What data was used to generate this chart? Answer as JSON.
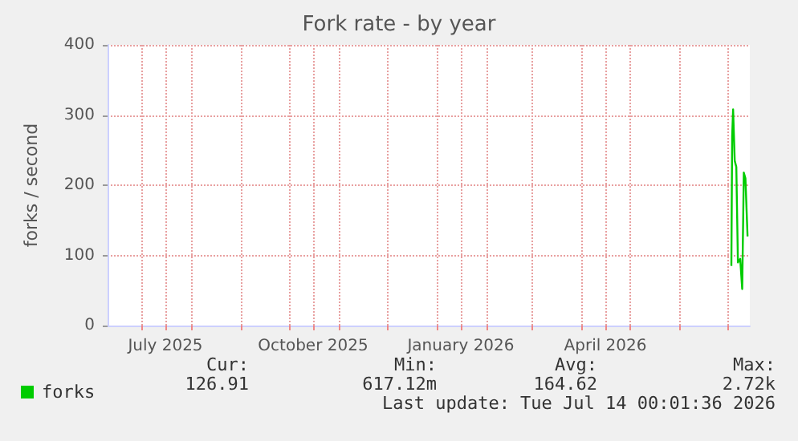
{
  "chart_data": {
    "type": "line",
    "title": "Fork rate - by year",
    "ylabel": "forks / second",
    "x": [
      "2026-07-03T12:00",
      "2026-07-04T00:00",
      "2026-07-04T14:00",
      "2026-07-05T14:00",
      "2026-07-06T14:00",
      "2026-07-07T14:00",
      "2026-07-09T00:00",
      "2026-07-10T06:00",
      "2026-07-11T06:00",
      "2026-07-12T06:00",
      "2026-07-13T14:00"
    ],
    "series": [
      {
        "name": "forks",
        "color": "#00cc00",
        "values": [
          85,
          270,
          308,
          235,
          226,
          90,
          95,
          52,
          218,
          210,
          127
        ]
      }
    ],
    "xlim": [
      "2025-06-10",
      "2026-07-15"
    ],
    "xticks": [
      {
        "value": "2025-07-01",
        "label": null
      },
      {
        "value": "2025-07-16",
        "label": "July 2025"
      },
      {
        "value": "2025-08-01",
        "label": null
      },
      {
        "value": "2025-09-01",
        "label": null
      },
      {
        "value": "2025-10-01",
        "label": null
      },
      {
        "value": "2025-10-16",
        "label": "October 2025"
      },
      {
        "value": "2025-11-01",
        "label": null
      },
      {
        "value": "2025-12-01",
        "label": null
      },
      {
        "value": "2026-01-01",
        "label": null
      },
      {
        "value": "2026-01-16",
        "label": "January 2026"
      },
      {
        "value": "2026-02-01",
        "label": null
      },
      {
        "value": "2026-03-01",
        "label": null
      },
      {
        "value": "2026-04-01",
        "label": null
      },
      {
        "value": "2026-04-16",
        "label": "April 2026"
      },
      {
        "value": "2026-05-01",
        "label": null
      },
      {
        "value": "2026-06-01",
        "label": null
      },
      {
        "value": "2026-07-01",
        "label": null
      }
    ],
    "ylim": [
      0,
      400
    ],
    "yticks": [
      0,
      100,
      200,
      300,
      400
    ],
    "grid": true,
    "legend": "bottom left",
    "marker": "none",
    "line_style": "solid",
    "annotations": [
      "Cur:",
      "126.91",
      "Min:",
      "617.12m",
      "Avg:",
      "164.62",
      "Max:",
      "2.72k",
      "Last update: Tue Jul 14 00:01:36 2026"
    ]
  }
}
